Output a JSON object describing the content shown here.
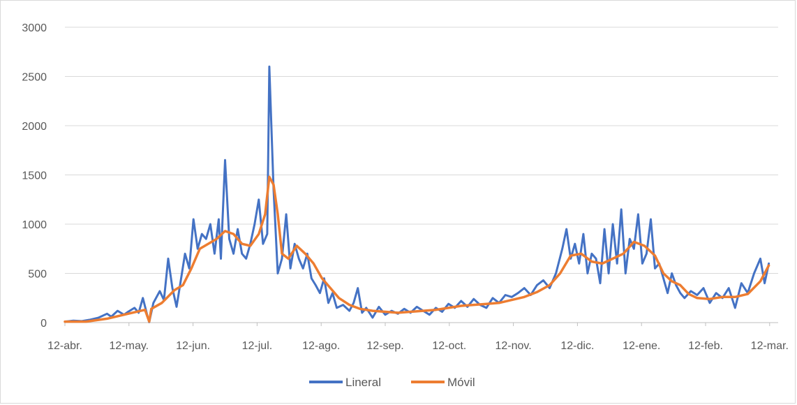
{
  "chart_data": {
    "type": "line",
    "title": "",
    "xlabel": "",
    "ylabel": "",
    "ylim": [
      0,
      3000
    ],
    "yticks": [
      "0",
      "500",
      "1000",
      "1500",
      "2000",
      "2500",
      "3000"
    ],
    "grid": "horizontal",
    "legend_position": "bottom",
    "x_start": "12-abr.",
    "x_end": "12-mar.",
    "categories": [
      "12-abr.",
      "12-may.",
      "12-jun.",
      "12-jul.",
      "12-ago.",
      "12-sep.",
      "12-oct.",
      "12-nov.",
      "12-dic.",
      "12-ene.",
      "12-feb.",
      "12-mar."
    ],
    "series": [
      {
        "name": "Lineral",
        "color": "#4472c4",
        "points": [
          [
            0,
            10
          ],
          [
            4,
            20
          ],
          [
            8,
            15
          ],
          [
            12,
            30
          ],
          [
            16,
            50
          ],
          [
            20,
            90
          ],
          [
            22,
            60
          ],
          [
            25,
            120
          ],
          [
            28,
            80
          ],
          [
            30,
            110
          ],
          [
            33,
            150
          ],
          [
            35,
            100
          ],
          [
            37,
            250
          ],
          [
            39,
            80
          ],
          [
            40,
            5
          ],
          [
            42,
            200
          ],
          [
            45,
            320
          ],
          [
            47,
            230
          ],
          [
            49,
            650
          ],
          [
            51,
            350
          ],
          [
            53,
            160
          ],
          [
            55,
            430
          ],
          [
            57,
            700
          ],
          [
            59,
            550
          ],
          [
            61,
            1050
          ],
          [
            63,
            750
          ],
          [
            65,
            900
          ],
          [
            67,
            850
          ],
          [
            69,
            1000
          ],
          [
            71,
            700
          ],
          [
            73,
            1050
          ],
          [
            74,
            650
          ],
          [
            76,
            1650
          ],
          [
            78,
            850
          ],
          [
            80,
            700
          ],
          [
            82,
            950
          ],
          [
            84,
            700
          ],
          [
            86,
            650
          ],
          [
            88,
            800
          ],
          [
            90,
            1000
          ],
          [
            92,
            1250
          ],
          [
            94,
            800
          ],
          [
            96,
            900
          ],
          [
            97,
            2600
          ],
          [
            99,
            1350
          ],
          [
            101,
            500
          ],
          [
            103,
            650
          ],
          [
            105,
            1100
          ],
          [
            107,
            550
          ],
          [
            109,
            800
          ],
          [
            111,
            650
          ],
          [
            113,
            550
          ],
          [
            115,
            700
          ],
          [
            117,
            450
          ],
          [
            119,
            380
          ],
          [
            121,
            300
          ],
          [
            123,
            450
          ],
          [
            125,
            200
          ],
          [
            127,
            300
          ],
          [
            129,
            150
          ],
          [
            132,
            180
          ],
          [
            135,
            120
          ],
          [
            137,
            200
          ],
          [
            139,
            350
          ],
          [
            141,
            100
          ],
          [
            143,
            150
          ],
          [
            146,
            50
          ],
          [
            149,
            160
          ],
          [
            152,
            80
          ],
          [
            155,
            120
          ],
          [
            158,
            90
          ],
          [
            161,
            140
          ],
          [
            164,
            100
          ],
          [
            167,
            160
          ],
          [
            170,
            120
          ],
          [
            173,
            80
          ],
          [
            176,
            150
          ],
          [
            179,
            110
          ],
          [
            182,
            190
          ],
          [
            185,
            150
          ],
          [
            188,
            220
          ],
          [
            191,
            160
          ],
          [
            194,
            240
          ],
          [
            197,
            180
          ],
          [
            200,
            150
          ],
          [
            203,
            250
          ],
          [
            206,
            200
          ],
          [
            209,
            280
          ],
          [
            212,
            260
          ],
          [
            215,
            300
          ],
          [
            218,
            350
          ],
          [
            221,
            280
          ],
          [
            224,
            380
          ],
          [
            227,
            430
          ],
          [
            230,
            350
          ],
          [
            233,
            500
          ],
          [
            236,
            750
          ],
          [
            238,
            950
          ],
          [
            240,
            650
          ],
          [
            242,
            800
          ],
          [
            244,
            600
          ],
          [
            246,
            900
          ],
          [
            248,
            500
          ],
          [
            250,
            700
          ],
          [
            252,
            650
          ],
          [
            254,
            400
          ],
          [
            256,
            950
          ],
          [
            258,
            500
          ],
          [
            260,
            1000
          ],
          [
            262,
            600
          ],
          [
            264,
            1150
          ],
          [
            266,
            500
          ],
          [
            268,
            850
          ],
          [
            270,
            750
          ],
          [
            272,
            1100
          ],
          [
            274,
            600
          ],
          [
            276,
            700
          ],
          [
            278,
            1050
          ],
          [
            280,
            550
          ],
          [
            282,
            600
          ],
          [
            284,
            450
          ],
          [
            286,
            300
          ],
          [
            288,
            500
          ],
          [
            290,
            380
          ],
          [
            292,
            300
          ],
          [
            294,
            250
          ],
          [
            297,
            320
          ],
          [
            300,
            280
          ],
          [
            303,
            350
          ],
          [
            306,
            200
          ],
          [
            309,
            300
          ],
          [
            312,
            250
          ],
          [
            315,
            350
          ],
          [
            318,
            150
          ],
          [
            321,
            400
          ],
          [
            324,
            300
          ],
          [
            327,
            500
          ],
          [
            330,
            650
          ],
          [
            332,
            400
          ],
          [
            334,
            600
          ]
        ]
      },
      {
        "name": "Móvil",
        "color": "#ed7d31",
        "points": [
          [
            0,
            10
          ],
          [
            10,
            10
          ],
          [
            20,
            40
          ],
          [
            30,
            90
          ],
          [
            38,
            130
          ],
          [
            40,
            10
          ],
          [
            41,
            140
          ],
          [
            46,
            200
          ],
          [
            52,
            330
          ],
          [
            56,
            380
          ],
          [
            60,
            550
          ],
          [
            64,
            750
          ],
          [
            68,
            800
          ],
          [
            72,
            850
          ],
          [
            76,
            930
          ],
          [
            80,
            900
          ],
          [
            84,
            800
          ],
          [
            88,
            780
          ],
          [
            92,
            900
          ],
          [
            95,
            1100
          ],
          [
            97,
            1480
          ],
          [
            99,
            1400
          ],
          [
            101,
            1100
          ],
          [
            103,
            700
          ],
          [
            106,
            650
          ],
          [
            110,
            780
          ],
          [
            114,
            700
          ],
          [
            118,
            600
          ],
          [
            122,
            450
          ],
          [
            126,
            350
          ],
          [
            130,
            250
          ],
          [
            135,
            180
          ],
          [
            140,
            140
          ],
          [
            146,
            120
          ],
          [
            152,
            110
          ],
          [
            158,
            100
          ],
          [
            164,
            110
          ],
          [
            170,
            120
          ],
          [
            176,
            130
          ],
          [
            182,
            150
          ],
          [
            188,
            170
          ],
          [
            194,
            180
          ],
          [
            200,
            190
          ],
          [
            206,
            200
          ],
          [
            212,
            230
          ],
          [
            218,
            260
          ],
          [
            224,
            310
          ],
          [
            230,
            380
          ],
          [
            235,
            500
          ],
          [
            240,
            680
          ],
          [
            245,
            700
          ],
          [
            250,
            620
          ],
          [
            255,
            600
          ],
          [
            260,
            650
          ],
          [
            265,
            700
          ],
          [
            270,
            820
          ],
          [
            275,
            780
          ],
          [
            280,
            680
          ],
          [
            284,
            500
          ],
          [
            288,
            420
          ],
          [
            292,
            380
          ],
          [
            296,
            290
          ],
          [
            300,
            250
          ],
          [
            306,
            240
          ],
          [
            312,
            260
          ],
          [
            318,
            260
          ],
          [
            324,
            290
          ],
          [
            330,
            420
          ],
          [
            334,
            580
          ]
        ]
      }
    ],
    "x_max_index": 336
  }
}
